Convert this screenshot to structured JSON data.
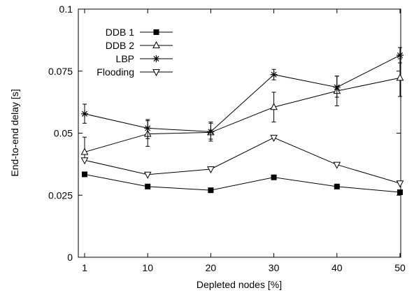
{
  "chart_data": {
    "type": "line",
    "title": "",
    "xlabel": "Depleted nodes [%]",
    "ylabel": "End-to-end delay [s]",
    "x": [
      1,
      10,
      20,
      30,
      40,
      50
    ],
    "x_ticks": [
      "1",
      "10",
      "20",
      "30",
      "40",
      "50"
    ],
    "ylim": [
      0,
      0.1
    ],
    "y_ticks": [
      "0",
      "0.025",
      "0.05",
      "0.075",
      "0.1"
    ],
    "y_tick_values": [
      0,
      0.025,
      0.05,
      0.075,
      0.1
    ],
    "grid": false,
    "legend_position": "top-left",
    "series": [
      {
        "name": "DDB 1",
        "marker": "square",
        "values": [
          0.0334,
          0.0285,
          0.027,
          0.0322,
          0.0285,
          0.0262
        ]
      },
      {
        "name": "DDB 2",
        "marker": "triangle-up",
        "values": [
          0.0424,
          0.0497,
          0.0503,
          0.0605,
          0.067,
          0.0723
        ],
        "error": [
          [
            0.04,
            0.0484
          ],
          [
            0.0447,
            0.055
          ],
          [
            0.0476,
            0.054
          ],
          [
            0.0545,
            0.0665
          ],
          [
            0.061,
            0.073
          ],
          [
            0.0648,
            0.08
          ]
        ]
      },
      {
        "name": "LBP",
        "marker": "star",
        "values": [
          0.0578,
          0.052,
          0.0506,
          0.0736,
          0.0685,
          0.0814
        ],
        "error": [
          [
            0.054,
            0.0617
          ],
          [
            0.0478,
            0.0555
          ],
          [
            0.0468,
            0.0545
          ],
          [
            0.0715,
            0.0757
          ],
          [
            0.0645,
            0.073
          ],
          [
            0.0783,
            0.0845
          ]
        ]
      },
      {
        "name": "Flooding",
        "marker": "triangle-down",
        "values": [
          0.0391,
          0.0333,
          0.0355,
          0.0482,
          0.0373,
          0.0298
        ]
      }
    ]
  }
}
